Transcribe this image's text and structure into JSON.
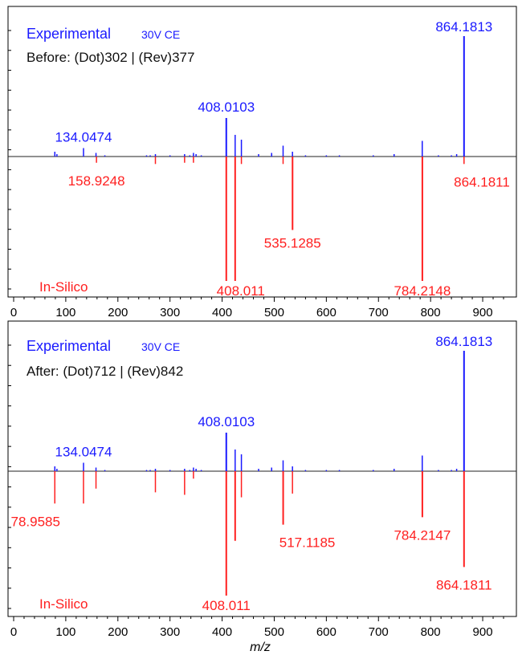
{
  "figure": {
    "xlabel": "m/z",
    "colors": {
      "experimental": "#1a1aff",
      "insilico": "#ff2020",
      "axis": "#000000",
      "info": "#111111"
    }
  },
  "chart_data": [
    {
      "type": "bar",
      "panel": "before",
      "title": "Experimental",
      "subtitle": "30V CE",
      "info": "Before: (Dot)302 | (Rev)377",
      "bottom_label": "In-Silico",
      "xlim": [
        0,
        940
      ],
      "x_ticks": [
        0,
        100,
        200,
        300,
        400,
        500,
        600,
        700,
        800,
        900
      ],
      "ylim": [
        -100,
        100
      ],
      "grid": false,
      "series": [
        {
          "name": "Experimental",
          "color": "#1a1aff",
          "direction": "up",
          "x": [
            79,
            83,
            134.0474,
            158,
            175,
            255,
            262,
            272,
            300,
            328,
            338,
            345,
            350,
            360,
            408.0103,
            425,
            437,
            470,
            495,
            517,
            535,
            560,
            600,
            625,
            690,
            730,
            784,
            815,
            840,
            850,
            864.1813
          ],
          "values": [
            4,
            2,
            7,
            3,
            1,
            1,
            1,
            2,
            1,
            2,
            1,
            3,
            2,
            1,
            32,
            18,
            14,
            2,
            3,
            9,
            4,
            1,
            1,
            1,
            1,
            2,
            13,
            1,
            1,
            2,
            100
          ]
        },
        {
          "name": "In-Silico",
          "color": "#ff2020",
          "direction": "down",
          "x": [
            158.9248,
            272,
            328,
            345,
            408.011,
            425,
            437,
            517,
            535.1285,
            784.2148,
            864.1811
          ],
          "values": [
            5,
            6,
            5,
            5,
            100,
            100,
            6,
            6,
            59,
            100,
            6
          ]
        }
      ],
      "labels": [
        {
          "text": "864.1813",
          "series": "Experimental",
          "x": 864.1813
        },
        {
          "text": "408.0103",
          "series": "Experimental",
          "x": 408.0103
        },
        {
          "text": "134.0474",
          "series": "Experimental",
          "x": 134.0474
        },
        {
          "text": "158.9248",
          "series": "In-Silico",
          "x": 158.9248
        },
        {
          "text": "864.1811",
          "series": "In-Silico",
          "x": 864.1811
        },
        {
          "text": "535.1285",
          "series": "In-Silico",
          "x": 535.1285
        },
        {
          "text": "408.011",
          "series": "In-Silico",
          "x": 408.011
        },
        {
          "text": "784.2148",
          "series": "In-Silico",
          "x": 784.2148
        }
      ]
    },
    {
      "type": "bar",
      "panel": "after",
      "title": "Experimental",
      "subtitle": "30V CE",
      "info": "After: (Dot)712 | (Rev)842",
      "bottom_label": "In-Silico",
      "xlim": [
        0,
        940
      ],
      "x_ticks": [
        0,
        100,
        200,
        300,
        400,
        500,
        600,
        700,
        800,
        900
      ],
      "ylim": [
        -100,
        100
      ],
      "grid": false,
      "series": [
        {
          "name": "Experimental",
          "color": "#1a1aff",
          "direction": "up",
          "x": [
            79,
            83,
            134.0474,
            158,
            175,
            255,
            262,
            272,
            300,
            328,
            338,
            345,
            350,
            360,
            408.0103,
            425,
            437,
            470,
            495,
            517,
            535,
            560,
            600,
            625,
            690,
            730,
            784,
            815,
            840,
            850,
            864.1813
          ],
          "values": [
            4,
            2,
            7,
            3,
            1,
            1,
            1,
            2,
            1,
            2,
            1,
            3,
            2,
            1,
            32,
            18,
            14,
            2,
            3,
            9,
            4,
            1,
            1,
            1,
            1,
            2,
            13,
            1,
            1,
            2,
            100
          ]
        },
        {
          "name": "In-Silico",
          "color": "#ff2020",
          "direction": "down",
          "x": [
            78.9585,
            134,
            158,
            272,
            328,
            345,
            408.011,
            425,
            437,
            517.1185,
            535,
            784.2147,
            864.1811
          ],
          "values": [
            26,
            26,
            14,
            17,
            19,
            6,
            100,
            56,
            21,
            43,
            18,
            37,
            77
          ]
        }
      ],
      "labels": [
        {
          "text": "864.1813",
          "series": "Experimental",
          "x": 864.1813
        },
        {
          "text": "408.0103",
          "series": "Experimental",
          "x": 408.0103
        },
        {
          "text": "134.0474",
          "series": "Experimental",
          "x": 134.0474
        },
        {
          "text": "78.9585",
          "series": "In-Silico",
          "x": 78.9585
        },
        {
          "text": "517.1185",
          "series": "In-Silico",
          "x": 517.1185
        },
        {
          "text": "784.2147",
          "series": "In-Silico",
          "x": 784.2147
        },
        {
          "text": "864.1811",
          "series": "In-Silico",
          "x": 864.1811
        },
        {
          "text": "408.011",
          "series": "In-Silico",
          "x": 408.011
        }
      ]
    }
  ]
}
